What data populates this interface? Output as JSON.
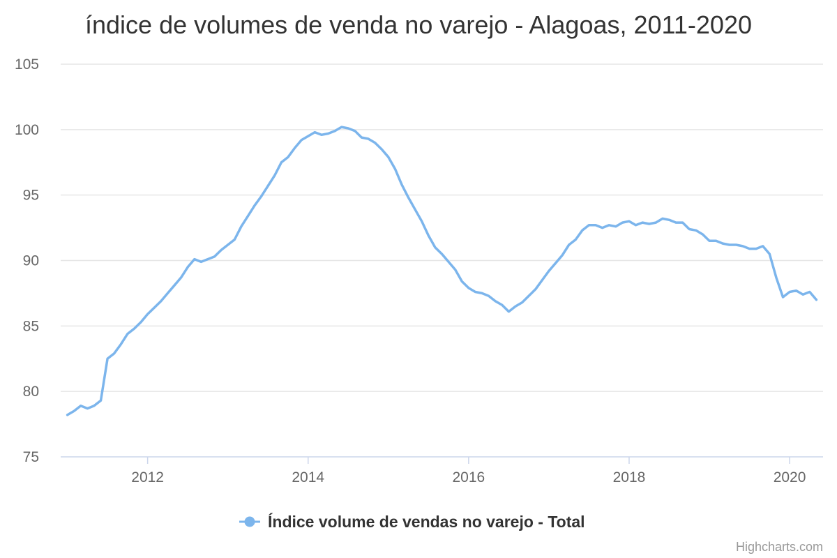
{
  "chart_data": {
    "type": "line",
    "title": "índice de volumes de venda no varejo - Alagoas, 2011-2020",
    "xlabel": "",
    "ylabel": "",
    "ylim": [
      75,
      105
    ],
    "yticks": [
      75,
      80,
      85,
      90,
      95,
      100,
      105
    ],
    "xlim": [
      "2010-12",
      "2020-06"
    ],
    "xticks": [
      "2012",
      "2014",
      "2016",
      "2018",
      "2020"
    ],
    "grid": true,
    "legend_position": "bottom-center",
    "series": [
      {
        "name": "Índice volume de vendas no varejo - Total",
        "color": "#7cb5ec",
        "marker": "circle",
        "x": [
          "2011-01",
          "2011-02",
          "2011-03",
          "2011-04",
          "2011-05",
          "2011-06",
          "2011-07",
          "2011-08",
          "2011-09",
          "2011-10",
          "2011-11",
          "2011-12",
          "2012-01",
          "2012-02",
          "2012-03",
          "2012-04",
          "2012-05",
          "2012-06",
          "2012-07",
          "2012-08",
          "2012-09",
          "2012-10",
          "2012-11",
          "2012-12",
          "2013-01",
          "2013-02",
          "2013-03",
          "2013-04",
          "2013-05",
          "2013-06",
          "2013-07",
          "2013-08",
          "2013-09",
          "2013-10",
          "2013-11",
          "2013-12",
          "2014-01",
          "2014-02",
          "2014-03",
          "2014-04",
          "2014-05",
          "2014-06",
          "2014-07",
          "2014-08",
          "2014-09",
          "2014-10",
          "2014-11",
          "2014-12",
          "2015-01",
          "2015-02",
          "2015-03",
          "2015-04",
          "2015-05",
          "2015-06",
          "2015-07",
          "2015-08",
          "2015-09",
          "2015-10",
          "2015-11",
          "2015-12",
          "2016-01",
          "2016-02",
          "2016-03",
          "2016-04",
          "2016-05",
          "2016-06",
          "2016-07",
          "2016-08",
          "2016-09",
          "2016-10",
          "2016-11",
          "2016-12",
          "2017-01",
          "2017-02",
          "2017-03",
          "2017-04",
          "2017-05",
          "2017-06",
          "2017-07",
          "2017-08",
          "2017-09",
          "2017-10",
          "2017-11",
          "2017-12",
          "2018-01",
          "2018-02",
          "2018-03",
          "2018-04",
          "2018-05",
          "2018-06",
          "2018-07",
          "2018-08",
          "2018-09",
          "2018-10",
          "2018-11",
          "2018-12",
          "2019-01",
          "2019-02",
          "2019-03",
          "2019-04",
          "2019-05",
          "2019-06",
          "2019-07",
          "2019-08",
          "2019-09",
          "2019-10",
          "2019-11",
          "2019-12",
          "2020-01",
          "2020-02",
          "2020-03",
          "2020-04",
          "2020-05"
        ],
        "values": [
          78.2,
          78.5,
          78.9,
          78.7,
          78.9,
          79.3,
          82.5,
          82.9,
          83.6,
          84.4,
          84.8,
          85.3,
          85.9,
          86.4,
          86.9,
          87.5,
          88.1,
          88.7,
          89.5,
          90.1,
          89.9,
          90.1,
          90.3,
          90.8,
          91.2,
          91.6,
          92.6,
          93.4,
          94.2,
          94.9,
          95.7,
          96.5,
          97.5,
          97.9,
          98.6,
          99.2,
          99.5,
          99.8,
          99.6,
          99.7,
          99.9,
          100.2,
          100.1,
          99.9,
          99.4,
          99.3,
          99.0,
          98.5,
          97.9,
          97.0,
          95.8,
          94.8,
          93.9,
          93.0,
          91.9,
          91.0,
          90.5,
          89.9,
          89.3,
          88.4,
          87.9,
          87.6,
          87.5,
          87.3,
          86.9,
          86.6,
          86.1,
          86.5,
          86.8,
          87.3,
          87.8,
          88.5,
          89.2,
          89.8,
          90.4,
          91.2,
          91.6,
          92.3,
          92.7,
          92.7,
          92.5,
          92.7,
          92.6,
          92.9,
          93.0,
          92.7,
          92.9,
          92.8,
          92.9,
          93.2,
          93.1,
          92.9,
          92.9,
          92.4,
          92.3,
          92.0,
          91.5,
          91.5,
          91.3,
          91.2,
          91.2,
          91.1,
          90.9,
          90.9,
          91.1,
          90.5,
          88.7,
          87.2,
          87.6,
          87.7,
          87.4,
          87.6,
          87.0
        ]
      }
    ]
  },
  "credits": "Highcharts.com"
}
